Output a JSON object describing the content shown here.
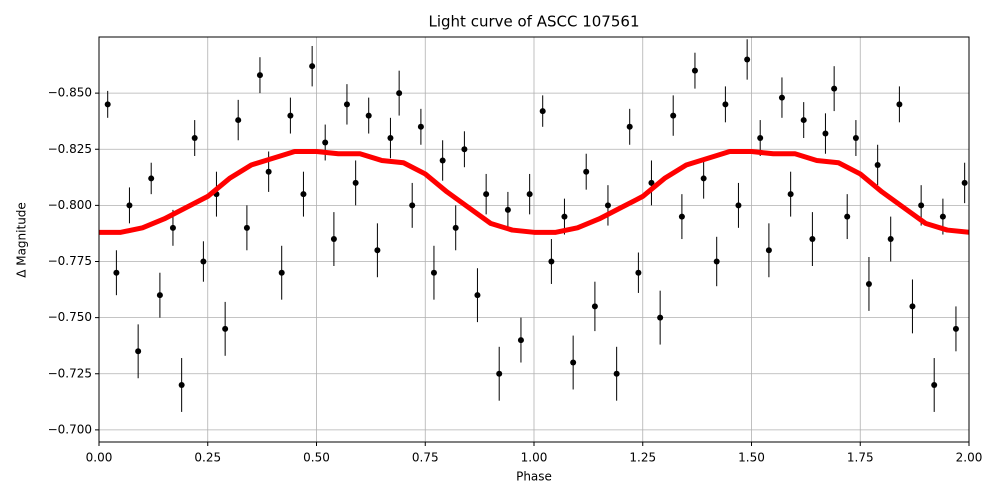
{
  "chart_data": {
    "type": "scatter",
    "title": "Light curve of ASCC 107561",
    "xlabel": "Phase",
    "ylabel": "Δ Magnitude",
    "xlim": [
      0,
      2
    ],
    "ylim": [
      -0.6946,
      -0.875
    ],
    "xticks": [
      {
        "value": 0,
        "label": "0.00"
      },
      {
        "value": 0.25,
        "label": "0.25"
      },
      {
        "value": 0.5,
        "label": "0.50"
      },
      {
        "value": 0.75,
        "label": "0.75"
      },
      {
        "value": 1,
        "label": "1.00"
      },
      {
        "value": 1.25,
        "label": "1.25"
      },
      {
        "value": 1.5,
        "label": "1.50"
      },
      {
        "value": 1.75,
        "label": "1.75"
      },
      {
        "value": 2,
        "label": "2.00"
      }
    ],
    "yticks": [
      {
        "value": -0.85,
        "label": "−0.850"
      },
      {
        "value": -0.825,
        "label": "−0.825"
      },
      {
        "value": -0.8,
        "label": "−0.800"
      },
      {
        "value": -0.775,
        "label": "−0.775"
      },
      {
        "value": -0.75,
        "label": "−0.750"
      },
      {
        "value": -0.725,
        "label": "−0.725"
      },
      {
        "value": -0.7,
        "label": "−0.700"
      }
    ],
    "grid": true,
    "points": {
      "color": "#000000",
      "x": [
        0.02,
        0.04,
        0.07,
        0.09,
        0.12,
        0.14,
        0.17,
        0.19,
        0.22,
        0.24,
        0.27,
        0.29,
        0.32,
        0.34,
        0.37,
        0.39,
        0.42,
        0.44,
        0.47,
        0.49,
        0.52,
        0.54,
        0.57,
        0.59,
        0.62,
        0.64,
        0.67,
        0.69,
        0.72,
        0.74,
        0.77,
        0.79,
        0.82,
        0.84,
        0.87,
        0.89,
        0.92,
        0.94,
        0.97,
        0.99,
        1.02,
        1.04,
        1.07,
        1.09,
        1.12,
        1.14,
        1.17,
        1.19,
        1.22,
        1.24,
        1.27,
        1.29,
        1.32,
        1.34,
        1.37,
        1.39,
        1.42,
        1.44,
        1.47,
        1.49,
        1.52,
        1.54,
        1.57,
        1.59,
        1.62,
        1.64,
        1.67,
        1.69,
        1.72,
        1.74,
        1.77,
        1.79,
        1.82,
        1.84,
        1.87,
        1.89,
        1.92,
        1.94,
        1.97,
        1.99
      ],
      "values": [
        -0.845,
        -0.77,
        -0.8,
        -0.735,
        -0.812,
        -0.76,
        -0.79,
        -0.72,
        -0.83,
        -0.775,
        -0.805,
        -0.745,
        -0.838,
        -0.79,
        -0.858,
        -0.815,
        -0.77,
        -0.84,
        -0.805,
        -0.862,
        -0.828,
        -0.785,
        -0.845,
        -0.81,
        -0.84,
        -0.78,
        -0.83,
        -0.85,
        -0.8,
        -0.835,
        -0.77,
        -0.82,
        -0.79,
        -0.825,
        -0.76,
        -0.805,
        -0.725,
        -0.798,
        -0.74,
        -0.805,
        -0.842,
        -0.775,
        -0.795,
        -0.73,
        -0.815,
        -0.755,
        -0.8,
        -0.725,
        -0.835,
        -0.77,
        -0.81,
        -0.75,
        -0.84,
        -0.795,
        -0.86,
        -0.812,
        -0.775,
        -0.845,
        -0.8,
        -0.865,
        -0.83,
        -0.78,
        -0.848,
        -0.805,
        -0.838,
        -0.785,
        -0.832,
        -0.852,
        -0.795,
        -0.83,
        -0.765,
        -0.818,
        -0.785,
        -0.845,
        -0.755,
        -0.8,
        -0.72,
        -0.795,
        -0.745,
        -0.81
      ],
      "errors": [
        0.006,
        0.01,
        0.008,
        0.012,
        0.007,
        0.01,
        0.008,
        0.012,
        0.008,
        0.009,
        0.01,
        0.012,
        0.009,
        0.01,
        0.008,
        0.009,
        0.012,
        0.008,
        0.01,
        0.009,
        0.008,
        0.012,
        0.009,
        0.01,
        0.008,
        0.012,
        0.009,
        0.01,
        0.01,
        0.008,
        0.012,
        0.009,
        0.01,
        0.008,
        0.012,
        0.009,
        0.012,
        0.008,
        0.01,
        0.009,
        0.007,
        0.01,
        0.008,
        0.012,
        0.008,
        0.011,
        0.009,
        0.012,
        0.008,
        0.009,
        0.01,
        0.012,
        0.009,
        0.01,
        0.008,
        0.009,
        0.011,
        0.008,
        0.01,
        0.009,
        0.008,
        0.012,
        0.009,
        0.01,
        0.008,
        0.012,
        0.009,
        0.01,
        0.01,
        0.008,
        0.012,
        0.009,
        0.01,
        0.008,
        0.012,
        0.009,
        0.012,
        0.008,
        0.01,
        0.009
      ]
    },
    "binned": {
      "color": "#ff0000",
      "x": [
        0,
        0.05,
        0.1,
        0.15,
        0.2,
        0.25,
        0.3,
        0.35,
        0.4,
        0.45,
        0.5,
        0.55,
        0.6,
        0.65,
        0.7,
        0.75,
        0.8,
        0.85,
        0.9,
        0.95,
        1,
        1.05,
        1.1,
        1.15,
        1.2,
        1.25,
        1.3,
        1.35,
        1.4,
        1.45,
        1.5,
        1.55,
        1.6,
        1.65,
        1.7,
        1.75,
        1.8,
        1.85,
        1.9,
        1.95,
        2
      ],
      "values": [
        -0.788,
        -0.788,
        -0.79,
        -0.794,
        -0.799,
        -0.804,
        -0.812,
        -0.818,
        -0.821,
        -0.824,
        -0.824,
        -0.823,
        -0.823,
        -0.82,
        -0.819,
        -0.814,
        -0.806,
        -0.799,
        -0.792,
        -0.789,
        -0.788,
        -0.788,
        -0.79,
        -0.794,
        -0.799,
        -0.804,
        -0.812,
        -0.818,
        -0.821,
        -0.824,
        -0.824,
        -0.823,
        -0.823,
        -0.82,
        -0.819,
        -0.814,
        -0.806,
        -0.799,
        -0.792,
        -0.789,
        -0.788
      ]
    }
  }
}
